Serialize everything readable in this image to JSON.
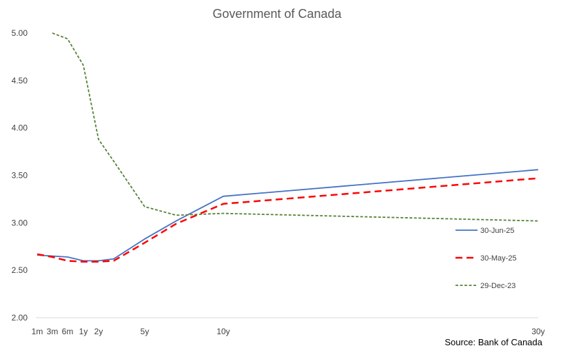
{
  "chart_data": {
    "type": "line",
    "title": "Government of Canada",
    "xlabel": "",
    "ylabel": "",
    "x_ticks": [
      {
        "label": "1m",
        "years": 0.0833
      },
      {
        "label": "3m",
        "years": 0.25
      },
      {
        "label": "6m",
        "years": 0.5
      },
      {
        "label": "1y",
        "years": 1
      },
      {
        "label": "2y",
        "years": 2
      },
      {
        "label": "5y",
        "years": 5
      },
      {
        "label": "10y",
        "years": 10
      },
      {
        "label": "30y",
        "years": 30
      }
    ],
    "ylim": [
      2.0,
      5.0
    ],
    "y_ticks": [
      "2.00",
      "2.50",
      "3.00",
      "3.50",
      "4.00",
      "4.50",
      "5.00"
    ],
    "grid": false,
    "legend_position": "right",
    "series": [
      {
        "name": "30-Jun-25",
        "color": "#4472C4",
        "style": "solid",
        "points": [
          {
            "x": 0.0833,
            "y": 2.66
          },
          {
            "x": 0.25,
            "y": 2.65
          },
          {
            "x": 0.5,
            "y": 2.64
          },
          {
            "x": 1,
            "y": 2.6
          },
          {
            "x": 2,
            "y": 2.6
          },
          {
            "x": 3,
            "y": 2.62
          },
          {
            "x": 5,
            "y": 2.83
          },
          {
            "x": 7,
            "y": 3.02
          },
          {
            "x": 10,
            "y": 3.28
          },
          {
            "x": 30,
            "y": 3.56
          }
        ]
      },
      {
        "name": "30-May-25",
        "color": "#FF0000",
        "style": "dashed",
        "points": [
          {
            "x": 0.0833,
            "y": 2.67
          },
          {
            "x": 0.25,
            "y": 2.64
          },
          {
            "x": 0.5,
            "y": 2.6
          },
          {
            "x": 1,
            "y": 2.59
          },
          {
            "x": 2,
            "y": 2.59
          },
          {
            "x": 3,
            "y": 2.6
          },
          {
            "x": 5,
            "y": 2.79
          },
          {
            "x": 7,
            "y": 2.99
          },
          {
            "x": 10,
            "y": 3.2
          },
          {
            "x": 30,
            "y": 3.47
          }
        ]
      },
      {
        "name": "29-Dec-23",
        "color": "#548235",
        "style": "dotted",
        "points": [
          {
            "x": 0.25,
            "y": 5.0
          },
          {
            "x": 0.5,
            "y": 4.94
          },
          {
            "x": 1,
            "y": 4.66
          },
          {
            "x": 2,
            "y": 3.88
          },
          {
            "x": 3,
            "y": 3.65
          },
          {
            "x": 5,
            "y": 3.17
          },
          {
            "x": 7,
            "y": 3.08
          },
          {
            "x": 10,
            "y": 3.1
          },
          {
            "x": 30,
            "y": 3.02
          }
        ]
      }
    ],
    "source_note": "Source: Bank of Canada"
  }
}
